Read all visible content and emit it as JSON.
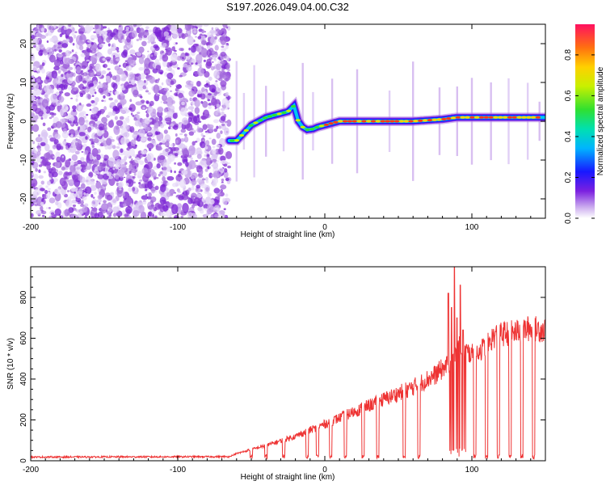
{
  "title": "S197.2026.049.04.00.C32",
  "chart_data": [
    {
      "type": "heatmap",
      "name": "spectrogram",
      "xlabel": "Height of straight line (km)",
      "ylabel": "Frequency (Hz)",
      "xlim": [
        -200,
        150
      ],
      "ylim": [
        -25,
        25
      ],
      "xticks": [
        -200,
        -100,
        0,
        100
      ],
      "yticks": [
        -20,
        -10,
        0,
        10,
        20
      ],
      "noise_region_x": [
        -200,
        -65
      ],
      "ridge": {
        "x": [
          -65,
          -60,
          -55,
          -50,
          -45,
          -40,
          -35,
          -30,
          -25,
          -21,
          -18,
          -15,
          -12,
          -8,
          -5,
          0,
          10,
          20,
          40,
          60,
          80,
          90,
          100,
          120,
          150
        ],
        "y": [
          -5,
          -5,
          -3,
          -1,
          0,
          1,
          1.5,
          2,
          2.5,
          4,
          0,
          -1.5,
          -2.2,
          -2,
          -1.5,
          -1,
          0,
          0,
          0,
          0,
          0.5,
          1,
          1,
          1,
          1
        ]
      },
      "colorbar": {
        "label": "Normalized spectral amplitude",
        "ticks": [
          0.0,
          0.2,
          0.4,
          0.6,
          0.8
        ],
        "tick_labels": [
          "0.0",
          "0.2",
          "0.4",
          "0.6",
          "0.8"
        ],
        "range": [
          0,
          0.95
        ]
      }
    },
    {
      "type": "line",
      "name": "snr",
      "xlabel": "Height of straight line (km)",
      "ylabel": "SNR (10 * v/v)",
      "xlim": [
        -200,
        150
      ],
      "ylim": [
        0,
        950
      ],
      "xticks": [
        -200,
        -100,
        0,
        100
      ],
      "yticks": [
        0,
        200,
        400,
        600,
        800
      ],
      "line_color": "#ee3333",
      "baseline": {
        "x": [
          -200,
          -65,
          -60,
          -40,
          -20,
          0,
          20,
          40,
          60,
          75,
          85,
          90,
          95,
          100,
          110,
          115,
          120,
          130,
          140,
          150
        ],
        "y": [
          18,
          20,
          35,
          75,
          120,
          180,
          240,
          300,
          360,
          420,
          480,
          560,
          540,
          520,
          560,
          610,
          620,
          630,
          650,
          640
        ]
      },
      "dropouts_x": [
        -50,
        -40,
        -28,
        -12,
        -5,
        4,
        14,
        26,
        36,
        54,
        64,
        102,
        110,
        118,
        126,
        134,
        142
      ],
      "spikes": [
        {
          "x": 84,
          "y": 820
        },
        {
          "x": 86,
          "y": 750
        },
        {
          "x": 88,
          "y": 950
        },
        {
          "x": 90,
          "y": 700
        },
        {
          "x": 92,
          "y": 860
        },
        {
          "x": 94,
          "y": 640
        }
      ]
    }
  ]
}
